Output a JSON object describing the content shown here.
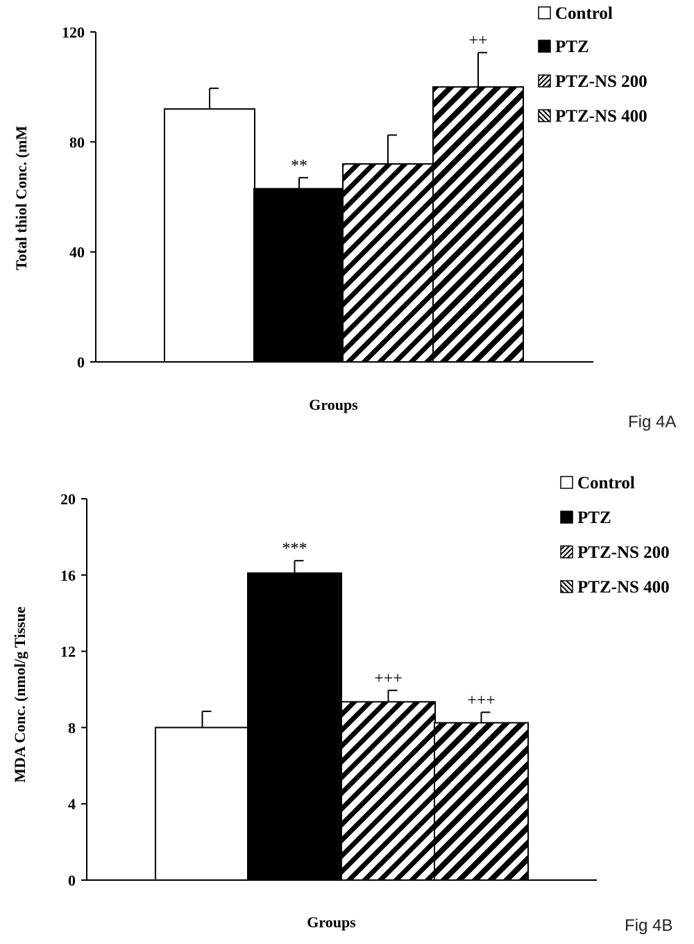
{
  "chart_data": [
    {
      "type": "bar",
      "categories": [
        "Control",
        "PTZ",
        "PTZ-NS 200",
        "PTZ-NS 400"
      ],
      "values": [
        92,
        63,
        72,
        100
      ],
      "errors": [
        7.5,
        4,
        10.5,
        12.5
      ],
      "annotations": [
        "",
        "**",
        "",
        "++"
      ],
      "ylim": [
        0,
        120
      ],
      "yticks": [
        0,
        40,
        80,
        120
      ],
      "xlabel": "Groups",
      "ylabel": "Total thiol Conc. (mM",
      "legend": [
        "Control",
        "PTZ",
        "PTZ-NS 200",
        "PTZ-NS 400"
      ],
      "legend_position": "top-right",
      "figure_label": "Fig 4A"
    },
    {
      "type": "bar",
      "categories": [
        "Control",
        "PTZ",
        "PTZ-NS 200",
        "PTZ-NS 400"
      ],
      "values": [
        8,
        16.1,
        9.35,
        8.25
      ],
      "errors": [
        0.85,
        0.65,
        0.6,
        0.55
      ],
      "annotations": [
        "",
        "***",
        "+++",
        "+++"
      ],
      "ylim": [
        0,
        20
      ],
      "yticks": [
        0,
        4,
        8,
        12,
        16,
        20
      ],
      "xlabel": "Groups",
      "ylabel": "MDA Conc. (nmol/g Tissue",
      "legend": [
        "Control",
        "PTZ",
        "PTZ-NS 200",
        "PTZ-NS 400"
      ],
      "legend_position": "top-right",
      "figure_label": "Fig 4B"
    }
  ],
  "styles": {
    "bar_fills": [
      "white",
      "solid-black",
      "diagonal-hatch",
      "diagonal-hatch-dense"
    ],
    "colors": {
      "ink": "#000000",
      "background": "#ffffff",
      "figure_label": "#222222"
    }
  }
}
